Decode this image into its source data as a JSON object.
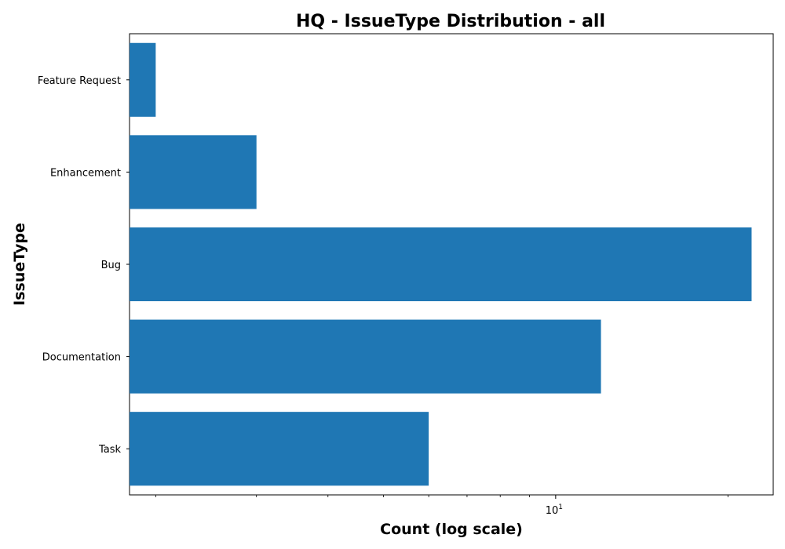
{
  "chart_data": {
    "type": "bar",
    "orientation": "horizontal",
    "title": "HQ - IssueType Distribution - all",
    "xlabel": "Count (log scale)",
    "ylabel": "IssueType",
    "x_scale": "log",
    "xlim": [
      1.8,
      24
    ],
    "categories": [
      "Task",
      "Documentation",
      "Bug",
      "Enhancement",
      "Feature Request"
    ],
    "values": [
      6,
      12,
      22,
      3,
      2
    ],
    "x_major_ticks": [
      {
        "value": 10,
        "base": "10",
        "exponent": "1"
      }
    ],
    "x_minor_ticks": [
      2,
      3,
      4,
      5,
      6,
      7,
      8,
      9,
      20
    ],
    "bar_color": "#1f77b4",
    "grid": false
  }
}
